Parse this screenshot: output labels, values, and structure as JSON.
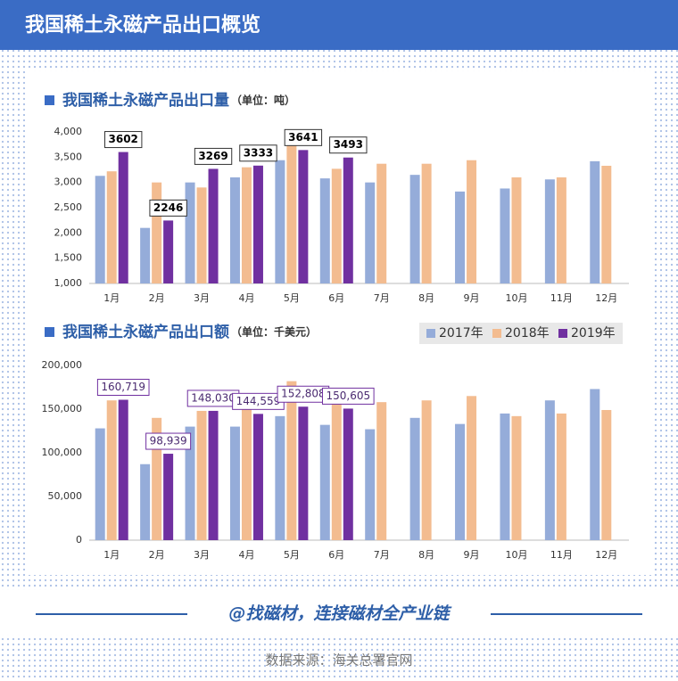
{
  "header": {
    "title": "我国稀土永磁产品出口概览"
  },
  "chart_data": [
    {
      "type": "bar",
      "title": "我国稀土永磁产品出口量",
      "subtitle": "（单位：吨）",
      "categories": [
        "1月",
        "2月",
        "3月",
        "4月",
        "5月",
        "6月",
        "7月",
        "8月",
        "9月",
        "10月",
        "11月",
        "12月"
      ],
      "series": [
        {
          "color": "#95acd9",
          "values": [
            3130,
            2100,
            3000,
            3100,
            3440,
            3080,
            3000,
            3150,
            2820,
            2880,
            3060,
            3420
          ]
        },
        {
          "color": "#f3bc90",
          "values": [
            3220,
            3000,
            2900,
            3300,
            3750,
            3270,
            3370,
            3370,
            3440,
            3100,
            3100,
            3330
          ]
        },
        {
          "color": "#7030a0",
          "values": [
            3602,
            2246,
            3269,
            3333,
            3641,
            3493,
            null,
            null,
            null,
            null,
            null,
            null
          ],
          "data_labels": true
        }
      ],
      "ylim": [
        1000,
        4000
      ],
      "yticks": [
        {
          "value": 1000,
          "label": "1,000"
        },
        {
          "value": 1500,
          "label": "1,500"
        },
        {
          "value": 2000,
          "label": "2,000"
        },
        {
          "value": 2500,
          "label": "2,500"
        },
        {
          "value": 3000,
          "label": "3,000"
        },
        {
          "value": 3500,
          "label": "3,500"
        },
        {
          "value": 4000,
          "label": "4,000"
        }
      ],
      "grid": false
    },
    {
      "type": "bar",
      "title": "我国稀土永磁产品出口额",
      "subtitle": "（单位：千美元）",
      "categories": [
        "1月",
        "2月",
        "3月",
        "4月",
        "5月",
        "6月",
        "7月",
        "8月",
        "9月",
        "10月",
        "11月",
        "12月"
      ],
      "series": [
        {
          "name": "2017年",
          "color": "#95acd9",
          "values": [
            128000,
            87000,
            130000,
            130000,
            142000,
            132000,
            127000,
            140000,
            133000,
            145000,
            160000,
            173000
          ]
        },
        {
          "name": "2018年",
          "color": "#f3bc90",
          "values": [
            160000,
            140000,
            148000,
            165000,
            182000,
            157000,
            158000,
            160000,
            165000,
            142000,
            145000,
            149000
          ]
        },
        {
          "name": "2019年",
          "color": "#7030a0",
          "values": [
            160719,
            98939,
            148030,
            144559,
            152808,
            150605,
            null,
            null,
            null,
            null,
            null,
            null
          ],
          "data_labels": true,
          "value_labels": [
            "160,719",
            "98,939",
            "148,030",
            "144,559",
            "152,808",
            "150,605",
            null,
            null,
            null,
            null,
            null,
            null
          ]
        }
      ],
      "ylim": [
        0,
        200000
      ],
      "yticks": [
        0,
        {
          "value": 50000,
          "label": "50,000"
        },
        {
          "value": 100000,
          "label": "100,000"
        },
        {
          "value": 150000,
          "label": "150,000"
        },
        {
          "value": 200000,
          "label": "200,000"
        }
      ],
      "grid": false,
      "legend": "top-right"
    }
  ],
  "footer": {
    "slogan": "@找磁材，连接磁材全产业链",
    "source": "数据来源：海关总署官网"
  }
}
